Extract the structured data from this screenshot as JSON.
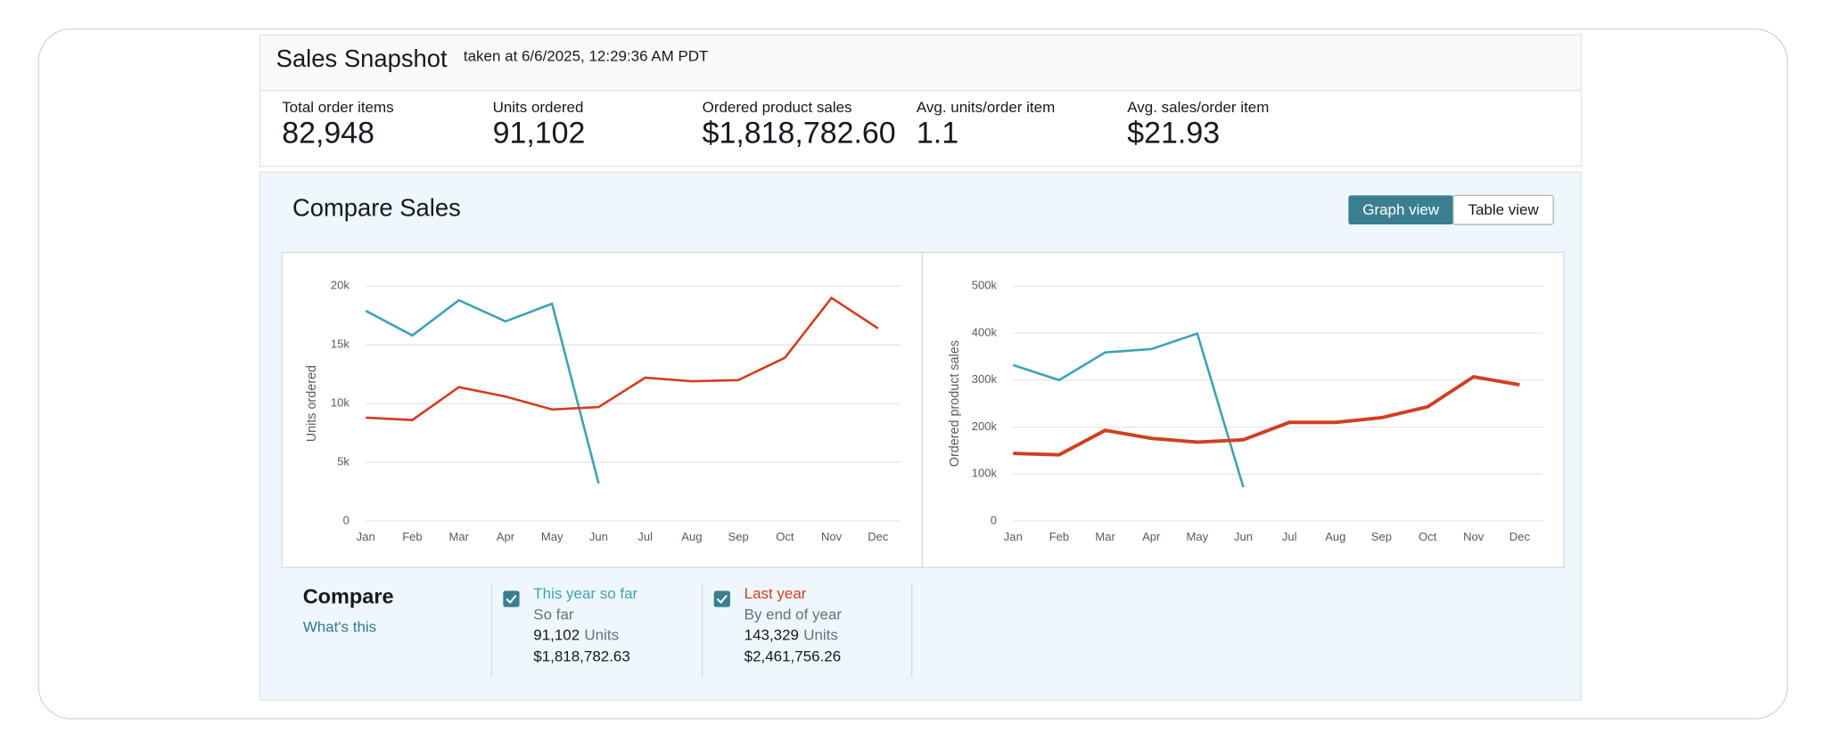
{
  "header": {
    "title": "Sales Snapshot",
    "subtitle": "taken at 6/6/2025, 12:29:36 AM PDT"
  },
  "metrics": [
    {
      "label": "Total order items",
      "value": "82,948"
    },
    {
      "label": "Units ordered",
      "value": "91,102"
    },
    {
      "label": "Ordered product sales",
      "value": "$1,818,782.60"
    },
    {
      "label": "Avg. units/order item",
      "value": "1.1"
    },
    {
      "label": "Avg. sales/order item",
      "value": "$21.93"
    }
  ],
  "compare_sales": {
    "title": "Compare Sales",
    "buttons": [
      "Graph view",
      "Table view"
    ]
  },
  "chart_data": [
    {
      "type": "line",
      "y_label": "Units ordered",
      "categories": [
        "Jan",
        "Feb",
        "Mar",
        "Apr",
        "May",
        "Jun",
        "Jul",
        "Aug",
        "Sep",
        "Oct",
        "Nov",
        "Dec"
      ],
      "series": [
        {
          "name": "This year so far",
          "color": "#3fa3b5",
          "values": [
            17900,
            15800,
            18800,
            17000,
            18500,
            3200,
            null,
            null,
            null,
            null,
            null,
            null
          ]
        },
        {
          "name": "Last year",
          "color": "#d13f1f",
          "values": [
            8800,
            8600,
            11400,
            10600,
            9500,
            9700,
            12200,
            11900,
            12000,
            13900,
            19000,
            16400
          ]
        }
      ],
      "ylim": [
        0,
        20000
      ],
      "yticks": [
        0,
        {
          "value": 5000,
          "label": "5k"
        },
        {
          "value": 10000,
          "label": "10k"
        },
        {
          "value": 15000,
          "label": "15k"
        },
        {
          "value": 20000,
          "label": "20k"
        }
      ],
      "grid": true
    },
    {
      "type": "line",
      "y_label": "Ordered product sales",
      "categories": [
        "Jan",
        "Feb",
        "Mar",
        "Apr",
        "May",
        "Jun",
        "Jul",
        "Aug",
        "Sep",
        "Oct",
        "Nov",
        "Dec"
      ],
      "series": [
        {
          "name": "This year so far",
          "color": "#3fa3b5",
          "values": [
            332000,
            300000,
            359000,
            366000,
            399000,
            72000,
            null,
            null,
            null,
            null,
            null,
            null
          ]
        },
        {
          "name": "Last year",
          "color": "#d13f1f",
          "values": [
            144000,
            141000,
            193000,
            176000,
            168000,
            173000,
            210000,
            210000,
            220000,
            243000,
            307000,
            290000
          ]
        }
      ],
      "ylim": [
        0,
        500000
      ],
      "yticks": [
        0,
        {
          "value": 100000,
          "label": "100k"
        },
        {
          "value": 200000,
          "label": "200k"
        },
        {
          "value": 300000,
          "label": "300k"
        },
        {
          "value": 400000,
          "label": "400k"
        },
        {
          "value": 500000,
          "label": "500k"
        }
      ],
      "grid": true
    }
  ],
  "compare": {
    "title": "Compare",
    "link": "What's this",
    "items": [
      {
        "period": "So far",
        "units": "91,102",
        "units_label": "Units",
        "sales": "$1,818,782.63"
      },
      {
        "period": "By end of year",
        "units": "143,329",
        "units_label": "Units",
        "sales": "$2,461,756.26"
      }
    ]
  }
}
